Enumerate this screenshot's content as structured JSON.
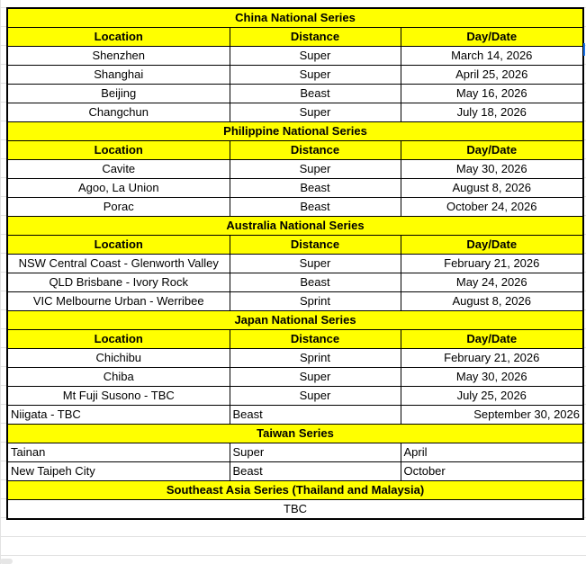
{
  "header_labels": [
    "Location",
    "Distance",
    "Day/Date"
  ],
  "sections": [
    {
      "title": "China National Series",
      "header": true,
      "align": "c",
      "rows": [
        [
          "Shenzhen",
          "Super",
          "March 14, 2026"
        ],
        [
          "Shanghai",
          "Super",
          "April 25, 2026"
        ],
        [
          "Beijing",
          "Beast",
          "May 16, 2026"
        ],
        [
          "Changchun",
          "Super",
          "July 18, 2026"
        ]
      ]
    },
    {
      "title": "Philippine National Series",
      "header": true,
      "align": "c",
      "rows": [
        [
          "Cavite",
          "Super",
          "May 30, 2026"
        ],
        [
          "Agoo, La Union",
          "Beast",
          "August 8, 2026"
        ],
        [
          "Porac",
          "Beast",
          "October 24, 2026"
        ]
      ]
    },
    {
      "title": "Australia National Series",
      "header": true,
      "align": "c",
      "rows": [
        [
          "NSW Central Coast - Glenworth Valley",
          "Super",
          "February 21, 2026"
        ],
        [
          "QLD Brisbane - Ivory Rock",
          "Beast",
          "May 24, 2026"
        ],
        [
          "VIC Melbourne Urban - Werribee",
          "Sprint",
          "August 8, 2026"
        ]
      ]
    },
    {
      "title": "Japan National Series",
      "header": true,
      "align": "c",
      "rows": [
        [
          "Chichibu",
          "Sprint",
          "February 21, 2026"
        ],
        [
          "Chiba",
          "Super",
          "May 30, 2026"
        ],
        [
          "Mt Fuji Susono - TBC",
          "Super",
          "July 25, 2026"
        ],
        [
          "Niigata - TBC",
          "Beast",
          "September 30, 2026"
        ]
      ],
      "row_aligns": [
        null,
        null,
        null,
        [
          "l",
          "l",
          "r"
        ]
      ]
    },
    {
      "title": "Taiwan Series",
      "header": false,
      "align": "l",
      "rows": [
        [
          "Tainan",
          "Super",
          "April"
        ],
        [
          "New Taipeh City",
          "Beast",
          "October"
        ]
      ]
    },
    {
      "title": "Southeast Asia Series (Thailand and Malaysia)",
      "header": false,
      "tbc": "TBC"
    }
  ],
  "colors": {
    "header_bg": "#ffff00",
    "border": "#000000"
  }
}
